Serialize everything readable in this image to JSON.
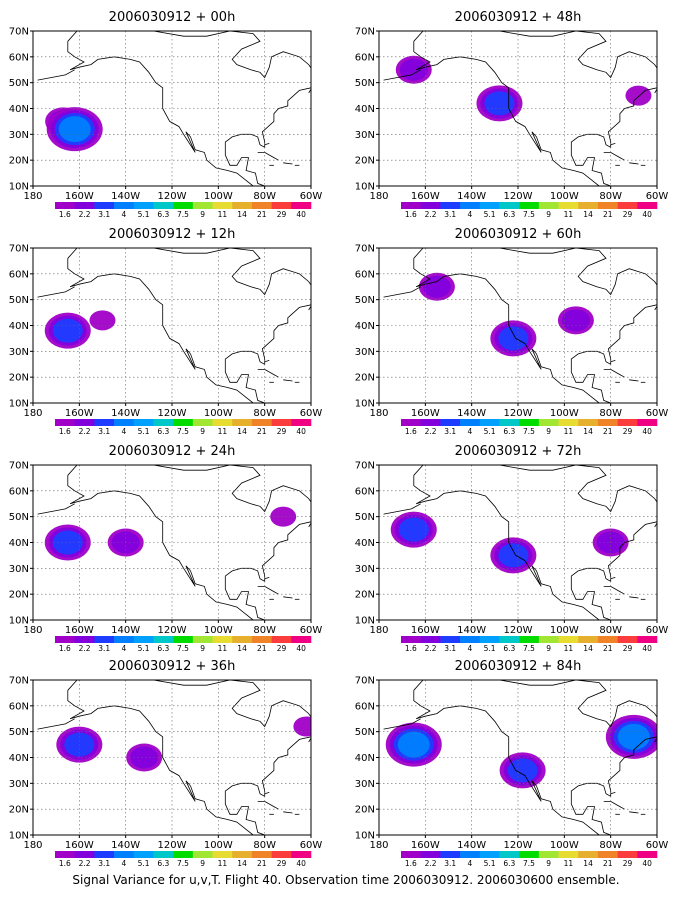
{
  "caption": "Signal Variance for u,v,T. Flight 40. Observation time 2006030912. 2006030600 ensemble.",
  "chart_data": {
    "type": "heatmap",
    "xticks": [
      "180",
      "160W",
      "140W",
      "120W",
      "100W",
      "80W",
      "60W"
    ],
    "yticks": [
      "10N",
      "20N",
      "30N",
      "40N",
      "50N",
      "60N",
      "70N"
    ],
    "xlim": [
      "180",
      "60W"
    ],
    "ylim": [
      "10N",
      "70N"
    ],
    "grid": true,
    "colorbar": {
      "levels": [
        "1.6",
        "2.2",
        "3.1",
        "4",
        "5.1",
        "6.3",
        "7.5",
        "9",
        "11",
        "14",
        "21",
        "29",
        "40"
      ],
      "colors": [
        "#a000c8",
        "#8200dc",
        "#1e3cff",
        "#0080ff",
        "#00a0ff",
        "#00c8c8",
        "#00dc00",
        "#a0e632",
        "#e6dc32",
        "#e6af2d",
        "#f08228",
        "#fa3c3c",
        "#f00082"
      ]
    },
    "panels": [
      {
        "title": "2006030912 + 00h",
        "blobs": [
          {
            "lon": -167,
            "lat": 35,
            "level": 2
          },
          {
            "lon": -162,
            "lat": 32,
            "level": 4
          }
        ]
      },
      {
        "title": "2006030912 + 12h",
        "blobs": [
          {
            "lon": -165,
            "lat": 38,
            "level": 3
          },
          {
            "lon": -150,
            "lat": 42,
            "level": 1
          }
        ]
      },
      {
        "title": "2006030912 + 24h",
        "blobs": [
          {
            "lon": -165,
            "lat": 40,
            "level": 3
          },
          {
            "lon": -140,
            "lat": 40,
            "level": 2
          },
          {
            "lon": -72,
            "lat": 50,
            "level": 1
          }
        ]
      },
      {
        "title": "2006030912 + 36h",
        "blobs": [
          {
            "lon": -160,
            "lat": 45,
            "level": 3
          },
          {
            "lon": -132,
            "lat": 40,
            "level": 2
          },
          {
            "lon": -62,
            "lat": 52,
            "level": 1
          }
        ]
      },
      {
        "title": "2006030912 + 48h",
        "blobs": [
          {
            "lon": -165,
            "lat": 55,
            "level": 2
          },
          {
            "lon": -128,
            "lat": 42,
            "level": 3
          },
          {
            "lon": -68,
            "lat": 45,
            "level": 1
          }
        ]
      },
      {
        "title": "2006030912 + 60h",
        "blobs": [
          {
            "lon": -155,
            "lat": 55,
            "level": 2
          },
          {
            "lon": -122,
            "lat": 35,
            "level": 3
          },
          {
            "lon": -95,
            "lat": 42,
            "level": 2
          }
        ]
      },
      {
        "title": "2006030912 + 72h",
        "blobs": [
          {
            "lon": -165,
            "lat": 45,
            "level": 3
          },
          {
            "lon": -122,
            "lat": 35,
            "level": 3
          },
          {
            "lon": -80,
            "lat": 40,
            "level": 2
          }
        ]
      },
      {
        "title": "2006030912 + 84h",
        "blobs": [
          {
            "lon": -165,
            "lat": 45,
            "level": 4
          },
          {
            "lon": -118,
            "lat": 35,
            "level": 3
          },
          {
            "lon": -70,
            "lat": 48,
            "level": 4
          }
        ]
      }
    ]
  }
}
